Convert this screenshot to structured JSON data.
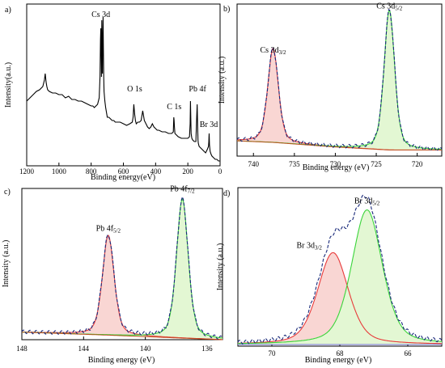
{
  "chart_data": [
    {
      "type": "line",
      "panel_label": "a)",
      "xlabel": "Binding energy(eV)",
      "ylabel": "Intensity(a.u.)",
      "xlim": [
        1200,
        0
      ],
      "x_reversed": true,
      "xticks": [
        1200,
        1000,
        800,
        600,
        400,
        200,
        0
      ],
      "y_ticks_shown": false,
      "ylim": [
        0,
        100
      ],
      "series": [
        {
          "color": "#000000",
          "x": [
            1200,
            1180,
            1160,
            1140,
            1120,
            1100,
            1090,
            1085,
            1080,
            1075,
            1070,
            1060,
            1040,
            1020,
            1000,
            980,
            960,
            940,
            920,
            900,
            880,
            860,
            840,
            820,
            800,
            790,
            780,
            770,
            760,
            750,
            745,
            742,
            740,
            738,
            736,
            734,
            732,
            730,
            728,
            726,
            724,
            722,
            720,
            715,
            710,
            700,
            690,
            680,
            670,
            660,
            650,
            640,
            620,
            600,
            580,
            560,
            545,
            540,
            535,
            530,
            525,
            520,
            510,
            500,
            490,
            480,
            470,
            460,
            450,
            440,
            430,
            420,
            410,
            400,
            390,
            380,
            360,
            340,
            320,
            300,
            290,
            287,
            285,
            283,
            280,
            270,
            260,
            240,
            220,
            200,
            190,
            186,
            184,
            182,
            180,
            175,
            170,
            160,
            150,
            145,
            142,
            139,
            137,
            135,
            130,
            120,
            110,
            100,
            90,
            80,
            72,
            70,
            69,
            68,
            66,
            62,
            55,
            50,
            40,
            30,
            20,
            10,
            5,
            0
          ],
          "y": [
            40,
            42,
            44,
            46,
            47,
            49,
            53,
            57,
            52,
            49,
            47,
            46,
            45,
            45,
            44,
            44,
            42,
            43,
            41,
            41,
            40,
            40,
            39,
            38,
            37,
            37,
            36,
            37,
            38,
            42,
            55,
            78,
            85,
            70,
            55,
            90,
            62,
            57,
            80,
            92,
            72,
            55,
            46,
            40,
            36,
            30,
            30,
            29,
            28,
            28,
            27,
            27,
            27,
            26,
            25,
            26,
            27,
            30,
            38,
            32,
            28,
            26,
            27,
            27,
            28,
            34,
            28,
            26,
            24,
            23,
            24,
            26,
            24,
            23,
            22,
            22,
            21,
            21,
            20,
            20,
            21,
            30,
            28,
            24,
            20,
            19,
            18,
            17,
            17,
            17,
            18,
            26,
            40,
            30,
            20,
            17,
            16,
            15,
            15,
            30,
            38,
            24,
            16,
            14,
            12,
            11,
            10,
            9,
            8,
            10,
            12,
            15,
            18,
            20,
            13,
            9,
            7,
            6,
            5,
            4,
            4,
            3,
            3,
            3
          ]
        }
      ],
      "annotations": [
        {
          "text": "Cs 3d",
          "x": 740,
          "y": 92
        },
        {
          "text": "O 1s",
          "x": 530,
          "y": 46
        },
        {
          "text": "C 1s",
          "x": 285,
          "y": 35
        },
        {
          "text": "Pb 4f",
          "x": 140,
          "y": 46
        },
        {
          "text": "Br 3d",
          "x": 70,
          "y": 24
        }
      ]
    },
    {
      "type": "line",
      "panel_label": "b)",
      "xlabel": "Binding energy (eV)",
      "ylabel": "Intensity (a.u.)",
      "xlim": [
        742,
        717
      ],
      "x_reversed": true,
      "xticks": [
        740,
        735,
        730,
        725,
        720
      ],
      "y_ticks_shown": false,
      "ylim": [
        0,
        100
      ],
      "series": [
        {
          "name": "Cs 3d3/2 component",
          "color": "#e83a3a",
          "fill": "#f9d6d3",
          "peak_center": 737.6,
          "peak_height": 62,
          "peak_width": 0.65
        },
        {
          "name": "Cs 3d5/2 component",
          "color": "#3ad43a",
          "fill": "#e3f7d3",
          "peak_center": 723.4,
          "peak_height": 92,
          "peak_width": 0.65
        },
        {
          "name": "background",
          "color": "#c05020"
        },
        {
          "name": "raw",
          "color": "#1a2a7a",
          "dashed": true
        }
      ],
      "background_x": [
        742,
        737.6,
        730,
        723.4,
        717
      ],
      "background_y": [
        10,
        9,
        6,
        4,
        4
      ],
      "annotations": [
        {
          "text": "Cs 3d",
          "sub": "3/2",
          "x": 737.6,
          "y": 68
        },
        {
          "text": "Cs 3d",
          "sub": "5/2",
          "x": 723.4,
          "y": 97
        }
      ]
    },
    {
      "type": "line",
      "panel_label": "c)",
      "xlabel": "Binding energy (eV)",
      "ylabel": "Intensity (a.u.)",
      "xlim": [
        148,
        135
      ],
      "x_reversed": true,
      "xticks": [
        148,
        144,
        140,
        136
      ],
      "y_ticks_shown": false,
      "ylim": [
        0,
        100
      ],
      "series": [
        {
          "name": "Pb 4f5/2 component",
          "color": "#e83a3a",
          "fill": "#f9d6d3",
          "peak_center": 142.4,
          "peak_height": 66,
          "peak_width": 0.38
        },
        {
          "name": "Pb 4f7/2 component",
          "color": "#3ad43a",
          "fill": "#e3f7d3",
          "peak_center": 137.6,
          "peak_height": 92,
          "peak_width": 0.38
        },
        {
          "name": "background",
          "color": "#c05020"
        },
        {
          "name": "raw",
          "color": "#1a2a7a",
          "dashed": true
        }
      ],
      "background_x": [
        148,
        142.4,
        140,
        137.6,
        135
      ],
      "background_y": [
        5,
        3,
        2,
        1,
        0
      ],
      "annotations": [
        {
          "text": "Pb 4f",
          "sub": "5/2",
          "x": 142.4,
          "y": 72
        },
        {
          "text": "Pb 4f",
          "sub": "7/2",
          "x": 137.6,
          "y": 98
        }
      ]
    },
    {
      "type": "line",
      "panel_label": "d)",
      "xlabel": "Binding energy (eV)",
      "ylabel": "Intensity (a.u.)",
      "xlim": [
        71,
        65
      ],
      "x_reversed": true,
      "xticks": [
        70,
        68,
        66
      ],
      "y_ticks_shown": false,
      "ylim": [
        0,
        100
      ],
      "series": [
        {
          "name": "Br 3d3/2 component",
          "color": "#e83a3a",
          "fill": "#f9d6d3",
          "peak_center": 68.2,
          "peak_height": 58,
          "peak_width": 0.45
        },
        {
          "name": "Br 3d5/2 component",
          "color": "#3ad43a",
          "fill": "#e3f7d3",
          "peak_center": 67.2,
          "peak_height": 85,
          "peak_width": 0.45
        },
        {
          "name": "background",
          "color": "#7070d0"
        },
        {
          "name": "raw",
          "color": "#1a2a7a",
          "dashed": true
        }
      ],
      "background_x": [
        71,
        65
      ],
      "background_y": [
        1,
        1
      ],
      "annotations": [
        {
          "text": "Br 3d",
          "sub": "3/2",
          "x": 68.9,
          "y": 62
        },
        {
          "text": "Br 3d",
          "sub": "5/2",
          "x": 67.2,
          "y": 90
        }
      ]
    }
  ]
}
